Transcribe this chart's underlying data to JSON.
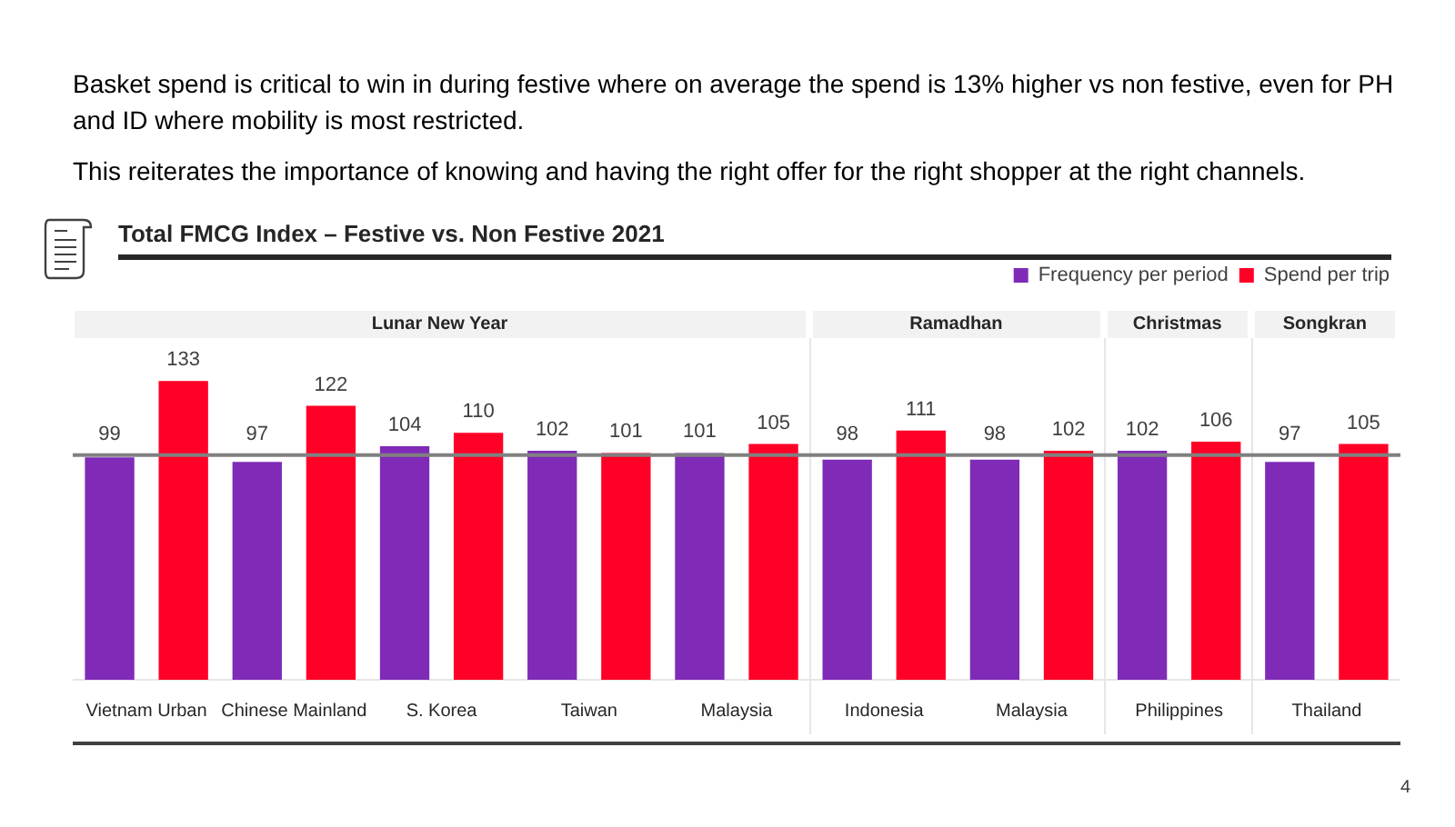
{
  "chart_data": {
    "type": "bar",
    "title": "Total FMCG Index – Festive vs. Non Festive 2021",
    "categories": [
      "Vietnam Urban",
      "Chinese Mainland",
      "S. Korea",
      "Taiwan",
      "Malaysia",
      "Indonesia",
      "Malaysia",
      "Philippines",
      "Thailand"
    ],
    "series": [
      {
        "name": "Frequency per period",
        "color": "#7f2bb8",
        "values": [
          99,
          97,
          104,
          102,
          101,
          98,
          98,
          102,
          97
        ]
      },
      {
        "name": "Spend per trip",
        "color": "#ff0027",
        "values": [
          133,
          122,
          110,
          101,
          105,
          111,
          102,
          106,
          105
        ]
      }
    ],
    "tick_labels": "x",
    "grid": false,
    "legend": "top right",
    "data_labels": true,
    "ref_lines": [
      {
        "axis": "y",
        "value": 100,
        "color": "#808080"
      }
    ],
    "annotations": [
      "Basket spend is critical to win in during festive where on average the spend is 13% higher vs non festive, even for PH and ID where mobility is most restricted.",
      "This reiterates the importance of knowing and having the right offer for the right shopper at the right channels.",
      "Lunar New Year",
      "Ramadhan",
      "Christmas",
      "Songkran",
      "4"
    ]
  }
}
